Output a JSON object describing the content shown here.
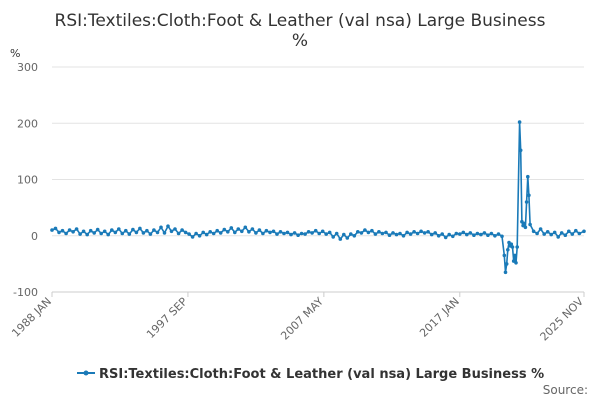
{
  "chart_data": {
    "type": "line",
    "title_line1": "RSI:Textiles:Cloth:Foot & Leather (val nsa) Large Business",
    "title_line2": "%",
    "ylabel": "%",
    "ylim": [
      -100,
      300
    ],
    "yticks": [
      "300",
      "200",
      "100",
      "0",
      "-100"
    ],
    "xlim": [
      "1988-01",
      "2025-11"
    ],
    "xticks": [
      {
        "label": "1988 JAN",
        "date": "1988-01"
      },
      {
        "label": "1997 SEP",
        "date": "1997-09"
      },
      {
        "label": "2007 MAY",
        "date": "2007-05"
      },
      {
        "label": "2017 JAN",
        "date": "2017-01"
      },
      {
        "label": "2025 NOV",
        "date": "2025-11"
      }
    ],
    "grid": true,
    "legend_position": "bottom",
    "series": [
      {
        "name": "RSI:Textiles:Cloth:Foot & Leather (val nsa) Large Business %",
        "color": "#1a7ab8",
        "points": [
          [
            "1988-01",
            10
          ],
          [
            "1988-04",
            13
          ],
          [
            "1988-07",
            6
          ],
          [
            "1988-10",
            9
          ],
          [
            "1989-01",
            4
          ],
          [
            "1989-04",
            10
          ],
          [
            "1989-07",
            7
          ],
          [
            "1989-10",
            12
          ],
          [
            "1990-01",
            3
          ],
          [
            "1990-04",
            8
          ],
          [
            "1990-07",
            2
          ],
          [
            "1990-10",
            9
          ],
          [
            "1991-01",
            5
          ],
          [
            "1991-04",
            11
          ],
          [
            "1991-07",
            4
          ],
          [
            "1991-10",
            8
          ],
          [
            "1992-01",
            2
          ],
          [
            "1992-04",
            10
          ],
          [
            "1992-07",
            6
          ],
          [
            "1992-10",
            12
          ],
          [
            "1993-01",
            4
          ],
          [
            "1993-04",
            9
          ],
          [
            "1993-07",
            3
          ],
          [
            "1993-10",
            11
          ],
          [
            "1994-01",
            6
          ],
          [
            "1994-04",
            13
          ],
          [
            "1994-07",
            5
          ],
          [
            "1994-10",
            9
          ],
          [
            "1995-01",
            3
          ],
          [
            "1995-04",
            10
          ],
          [
            "1995-07",
            6
          ],
          [
            "1995-10",
            15
          ],
          [
            "1996-01",
            5
          ],
          [
            "1996-04",
            17
          ],
          [
            "1996-07",
            8
          ],
          [
            "1996-10",
            12
          ],
          [
            "1997-01",
            4
          ],
          [
            "1997-04",
            10
          ],
          [
            "1997-07",
            6
          ],
          [
            "1997-10",
            3
          ],
          [
            "1998-01",
            -2
          ],
          [
            "1998-04",
            4
          ],
          [
            "1998-07",
            0
          ],
          [
            "1998-10",
            6
          ],
          [
            "1999-01",
            2
          ],
          [
            "1999-04",
            7
          ],
          [
            "1999-07",
            4
          ],
          [
            "1999-10",
            9
          ],
          [
            "2000-01",
            5
          ],
          [
            "2000-04",
            11
          ],
          [
            "2000-07",
            7
          ],
          [
            "2000-10",
            14
          ],
          [
            "2001-01",
            6
          ],
          [
            "2001-04",
            12
          ],
          [
            "2001-07",
            8
          ],
          [
            "2001-10",
            15
          ],
          [
            "2002-01",
            7
          ],
          [
            "2002-04",
            12
          ],
          [
            "2002-07",
            5
          ],
          [
            "2002-10",
            10
          ],
          [
            "2003-01",
            4
          ],
          [
            "2003-04",
            9
          ],
          [
            "2003-07",
            6
          ],
          [
            "2003-10",
            8
          ],
          [
            "2004-01",
            3
          ],
          [
            "2004-04",
            7
          ],
          [
            "2004-07",
            4
          ],
          [
            "2004-10",
            6
          ],
          [
            "2005-01",
            2
          ],
          [
            "2005-04",
            5
          ],
          [
            "2005-07",
            1
          ],
          [
            "2005-10",
            4
          ],
          [
            "2006-01",
            3
          ],
          [
            "2006-04",
            7
          ],
          [
            "2006-07",
            5
          ],
          [
            "2006-10",
            9
          ],
          [
            "2007-01",
            4
          ],
          [
            "2007-04",
            8
          ],
          [
            "2007-07",
            3
          ],
          [
            "2007-10",
            6
          ],
          [
            "2008-01",
            -2
          ],
          [
            "2008-04",
            4
          ],
          [
            "2008-07",
            -6
          ],
          [
            "2008-10",
            2
          ],
          [
            "2009-01",
            -4
          ],
          [
            "2009-04",
            3
          ],
          [
            "2009-07",
            0
          ],
          [
            "2009-10",
            7
          ],
          [
            "2010-01",
            5
          ],
          [
            "2010-04",
            10
          ],
          [
            "2010-07",
            6
          ],
          [
            "2010-10",
            9
          ],
          [
            "2011-01",
            3
          ],
          [
            "2011-04",
            7
          ],
          [
            "2011-07",
            4
          ],
          [
            "2011-10",
            6
          ],
          [
            "2012-01",
            1
          ],
          [
            "2012-04",
            5
          ],
          [
            "2012-07",
            2
          ],
          [
            "2012-10",
            4
          ],
          [
            "2013-01",
            0
          ],
          [
            "2013-04",
            6
          ],
          [
            "2013-07",
            3
          ],
          [
            "2013-10",
            7
          ],
          [
            "2014-01",
            4
          ],
          [
            "2014-04",
            8
          ],
          [
            "2014-07",
            5
          ],
          [
            "2014-10",
            7
          ],
          [
            "2015-01",
            2
          ],
          [
            "2015-04",
            5
          ],
          [
            "2015-07",
            0
          ],
          [
            "2015-10",
            3
          ],
          [
            "2016-01",
            -3
          ],
          [
            "2016-04",
            2
          ],
          [
            "2016-07",
            -1
          ],
          [
            "2016-10",
            4
          ],
          [
            "2017-01",
            3
          ],
          [
            "2017-04",
            6
          ],
          [
            "2017-07",
            2
          ],
          [
            "2017-10",
            5
          ],
          [
            "2018-01",
            1
          ],
          [
            "2018-04",
            4
          ],
          [
            "2018-07",
            2
          ],
          [
            "2018-10",
            5
          ],
          [
            "2019-01",
            1
          ],
          [
            "2019-04",
            4
          ],
          [
            "2019-07",
            0
          ],
          [
            "2019-10",
            3
          ],
          [
            "2020-01",
            -1
          ],
          [
            "2020-03",
            -35
          ],
          [
            "2020-04",
            -65
          ],
          [
            "2020-05",
            -50
          ],
          [
            "2020-06",
            -25
          ],
          [
            "2020-07",
            -12
          ],
          [
            "2020-08",
            -18
          ],
          [
            "2020-09",
            -15
          ],
          [
            "2020-10",
            -20
          ],
          [
            "2020-11",
            -45
          ],
          [
            "2020-12",
            -35
          ],
          [
            "2021-01",
            -48
          ],
          [
            "2021-02",
            -20
          ],
          [
            "2021-04",
            202
          ],
          [
            "2021-05",
            152
          ],
          [
            "2021-06",
            25
          ],
          [
            "2021-07",
            18
          ],
          [
            "2021-08",
            22
          ],
          [
            "2021-09",
            15
          ],
          [
            "2021-10",
            60
          ],
          [
            "2021-11",
            105
          ],
          [
            "2021-12",
            72
          ],
          [
            "2022-01",
            20
          ],
          [
            "2022-04",
            8
          ],
          [
            "2022-07",
            4
          ],
          [
            "2022-10",
            12
          ],
          [
            "2023-01",
            3
          ],
          [
            "2023-04",
            7
          ],
          [
            "2023-07",
            2
          ],
          [
            "2023-10",
            6
          ],
          [
            "2024-01",
            -2
          ],
          [
            "2024-04",
            5
          ],
          [
            "2024-07",
            1
          ],
          [
            "2024-10",
            8
          ],
          [
            "2025-01",
            3
          ],
          [
            "2025-04",
            9
          ],
          [
            "2025-07",
            4
          ],
          [
            "2025-11",
            8
          ]
        ]
      }
    ]
  },
  "source_label": "Source:"
}
